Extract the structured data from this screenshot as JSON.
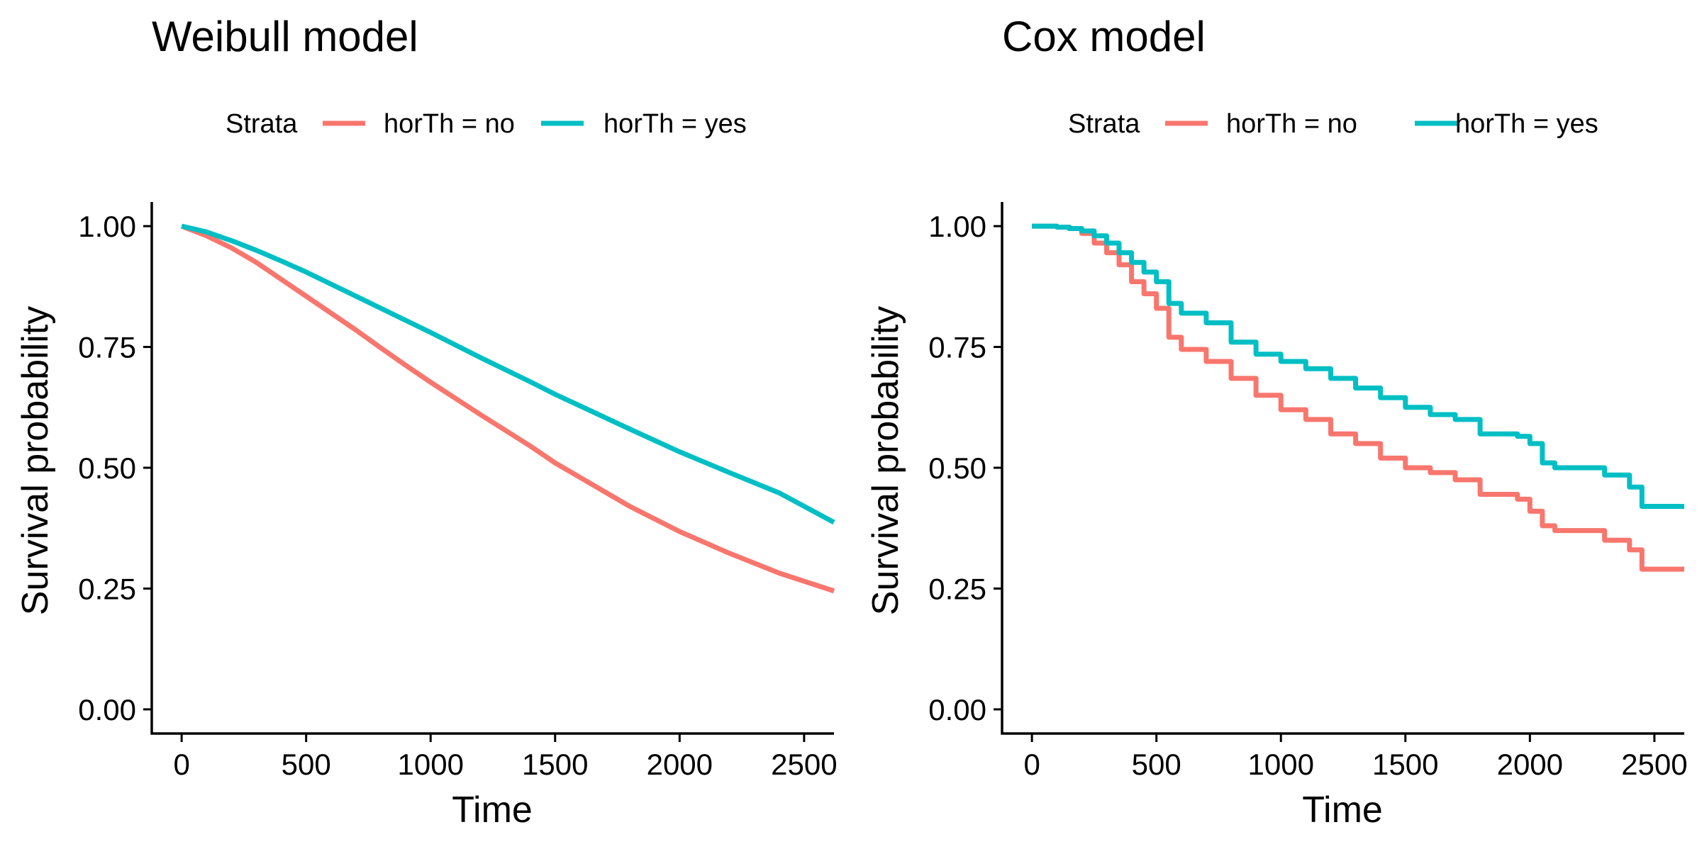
{
  "colors": {
    "no": "#F8766D",
    "yes": "#00BFC4",
    "axis": "#000000",
    "background": "#FFFFFF"
  },
  "chart_data": [
    {
      "type": "line",
      "title": "Weibull model",
      "xlabel": "Time",
      "ylabel": "Survival probability",
      "xlim": [
        -120,
        2620
      ],
      "ylim": [
        -0.05,
        1.05
      ],
      "xticks": [
        0,
        500,
        1000,
        1500,
        2000,
        2500
      ],
      "xtick_labels": [
        "0",
        "500",
        "1000",
        "1500",
        "2000",
        "2500"
      ],
      "yticks": [
        0,
        0.25,
        0.5,
        0.75,
        1
      ],
      "ytick_labels": [
        "0.00",
        "0.25",
        "0.50",
        "0.75",
        "1.00"
      ],
      "grid": false,
      "legend": {
        "title": "Strata",
        "position": "top",
        "labels": [
          "horTh = no",
          "horTh = yes"
        ]
      },
      "series": [
        {
          "name": "horTh = no",
          "color_key": "no",
          "step": false,
          "x": [
            0,
            100,
            200,
            300,
            400,
            500,
            600,
            700,
            800,
            900,
            1000,
            1200,
            1400,
            1500,
            1600,
            1800,
            2000,
            2200,
            2400,
            2620
          ],
          "y": [
            1.0,
            0.98,
            0.955,
            0.925,
            0.89,
            0.855,
            0.82,
            0.785,
            0.748,
            0.712,
            0.677,
            0.61,
            0.545,
            0.51,
            0.48,
            0.42,
            0.368,
            0.323,
            0.282,
            0.245
          ]
        },
        {
          "name": "horTh = yes",
          "color_key": "yes",
          "step": false,
          "x": [
            0,
            100,
            200,
            300,
            400,
            500,
            600,
            800,
            1000,
            1200,
            1400,
            1500,
            1600,
            1800,
            2000,
            2200,
            2400,
            2620
          ],
          "y": [
            1.0,
            0.988,
            0.97,
            0.95,
            0.928,
            0.905,
            0.88,
            0.83,
            0.78,
            0.728,
            0.678,
            0.652,
            0.628,
            0.58,
            0.533,
            0.49,
            0.448,
            0.387
          ]
        }
      ]
    },
    {
      "type": "line",
      "title": "Cox model",
      "xlabel": "Time",
      "ylabel": "Survival probability",
      "xlim": [
        -120,
        2620
      ],
      "ylim": [
        -0.05,
        1.05
      ],
      "xticks": [
        0,
        500,
        1000,
        1500,
        2000,
        2500
      ],
      "xtick_labels": [
        "0",
        "500",
        "1000",
        "1500",
        "2000",
        "2500"
      ],
      "yticks": [
        0,
        0.25,
        0.5,
        0.75,
        1
      ],
      "ytick_labels": [
        "0.00",
        "0.25",
        "0.50",
        "0.75",
        "1.00"
      ],
      "grid": false,
      "legend": {
        "title": "Strata",
        "position": "top",
        "labels": [
          "horTh =  no",
          "horTh =  yes"
        ]
      },
      "series": [
        {
          "name": "horTh =  no",
          "color_key": "no",
          "step": true,
          "x": [
            0,
            100,
            150,
            200,
            250,
            300,
            350,
            400,
            450,
            500,
            550,
            600,
            700,
            800,
            900,
            1000,
            1100,
            1200,
            1300,
            1400,
            1500,
            1600,
            1700,
            1800,
            1950,
            2000,
            2050,
            2100,
            2300,
            2400,
            2450,
            2620
          ],
          "y": [
            1.0,
            0.998,
            0.995,
            0.985,
            0.965,
            0.945,
            0.92,
            0.885,
            0.86,
            0.83,
            0.77,
            0.745,
            0.72,
            0.685,
            0.65,
            0.62,
            0.6,
            0.57,
            0.55,
            0.52,
            0.5,
            0.49,
            0.475,
            0.445,
            0.435,
            0.41,
            0.38,
            0.37,
            0.35,
            0.33,
            0.29,
            0.29
          ]
        },
        {
          "name": "horTh =  yes",
          "color_key": "yes",
          "step": true,
          "x": [
            0,
            100,
            150,
            200,
            250,
            300,
            350,
            400,
            450,
            500,
            550,
            600,
            700,
            800,
            900,
            1000,
            1100,
            1200,
            1300,
            1400,
            1500,
            1600,
            1700,
            1800,
            1950,
            2000,
            2050,
            2100,
            2300,
            2400,
            2450,
            2620
          ],
          "y": [
            1.0,
            0.998,
            0.995,
            0.99,
            0.98,
            0.965,
            0.945,
            0.925,
            0.905,
            0.885,
            0.84,
            0.82,
            0.8,
            0.76,
            0.735,
            0.72,
            0.705,
            0.685,
            0.665,
            0.645,
            0.625,
            0.61,
            0.6,
            0.57,
            0.565,
            0.55,
            0.51,
            0.5,
            0.485,
            0.46,
            0.42,
            0.42
          ]
        }
      ]
    }
  ]
}
